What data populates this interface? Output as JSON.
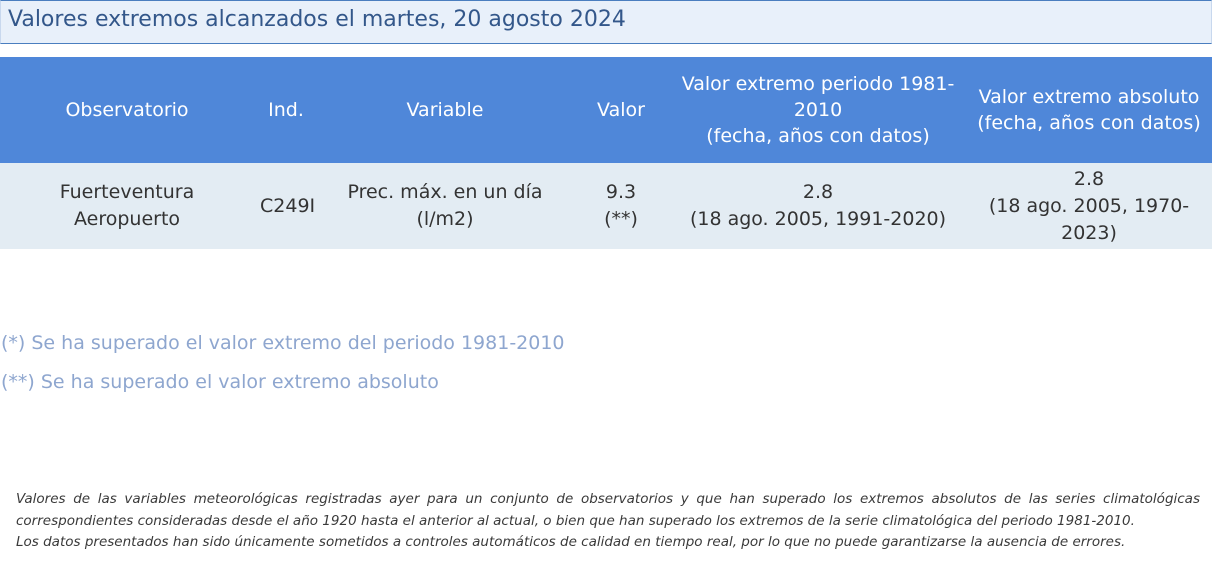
{
  "title": "Valores extremos alcanzados el martes, 20 agosto 2024",
  "table": {
    "headers": [
      [
        "Observatorio"
      ],
      [
        "Ind."
      ],
      [
        "Variable"
      ],
      [
        "Valor"
      ],
      [
        "Valor extremo periodo 1981-",
        "2010",
        "(fecha, años con datos)"
      ],
      [
        "Valor extremo absoluto",
        "(fecha, años con datos)"
      ]
    ],
    "rows": [
      [
        [
          "Fuerteventura",
          "Aeropuerto"
        ],
        [
          "C249I"
        ],
        [
          "Prec. máx. en un día",
          "(l/m2)"
        ],
        [
          "9.3",
          "(**)"
        ],
        [
          "2.8",
          "(18 ago. 2005, 1991-2020)"
        ],
        [
          "2.8",
          "(18 ago. 2005, 1970-",
          "2023)"
        ]
      ]
    ]
  },
  "notes": [
    "(*) Se ha superado el valor extremo del periodo 1981-2010",
    "(**) Se ha superado el valor extremo absoluto"
  ],
  "disclaimer": [
    "Valores de las variables meteorológicas registradas ayer para un conjunto de observatorios y que han superado los extremos absolutos de las series climatológicas",
    "correspondientes consideradas desde el año 1920 hasta el anterior al actual, o bien que han superado los extremos de la serie climatológica del periodo 1981-2010.",
    "Los datos presentados han sido únicamente sometidos a controles automáticos de calidad en tiempo real, por lo que no puede garantizarse la ausencia de errores."
  ]
}
